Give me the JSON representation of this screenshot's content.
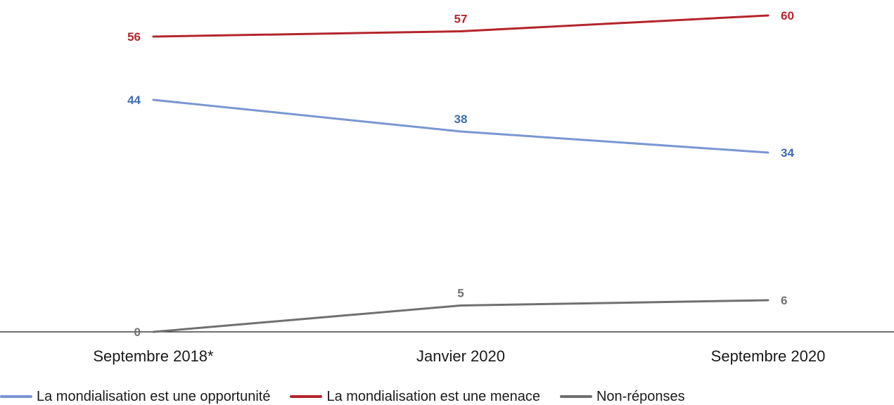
{
  "chart_data": {
    "type": "line",
    "categories": [
      "Septembre 2018*",
      "Janvier 2020",
      "Septembre 2020"
    ],
    "series": [
      {
        "name": "La mondialisation est une opportunité",
        "values": [
          44,
          38,
          34
        ],
        "color": "#7b96d2",
        "label_color": "#3f6db3"
      },
      {
        "name": "La mondialisation est une menace",
        "values": [
          56,
          57,
          60
        ],
        "color": "#b3262c",
        "label_color": "#b3262c"
      },
      {
        "name": "Non-réponses",
        "values": [
          0,
          5,
          6
        ],
        "color": "#707070",
        "label_color": "#707070"
      }
    ],
    "title": "",
    "xlabel": "",
    "ylabel": "",
    "ylim": [
      0,
      60
    ],
    "grid": false,
    "legend_position": "bottom-left"
  }
}
